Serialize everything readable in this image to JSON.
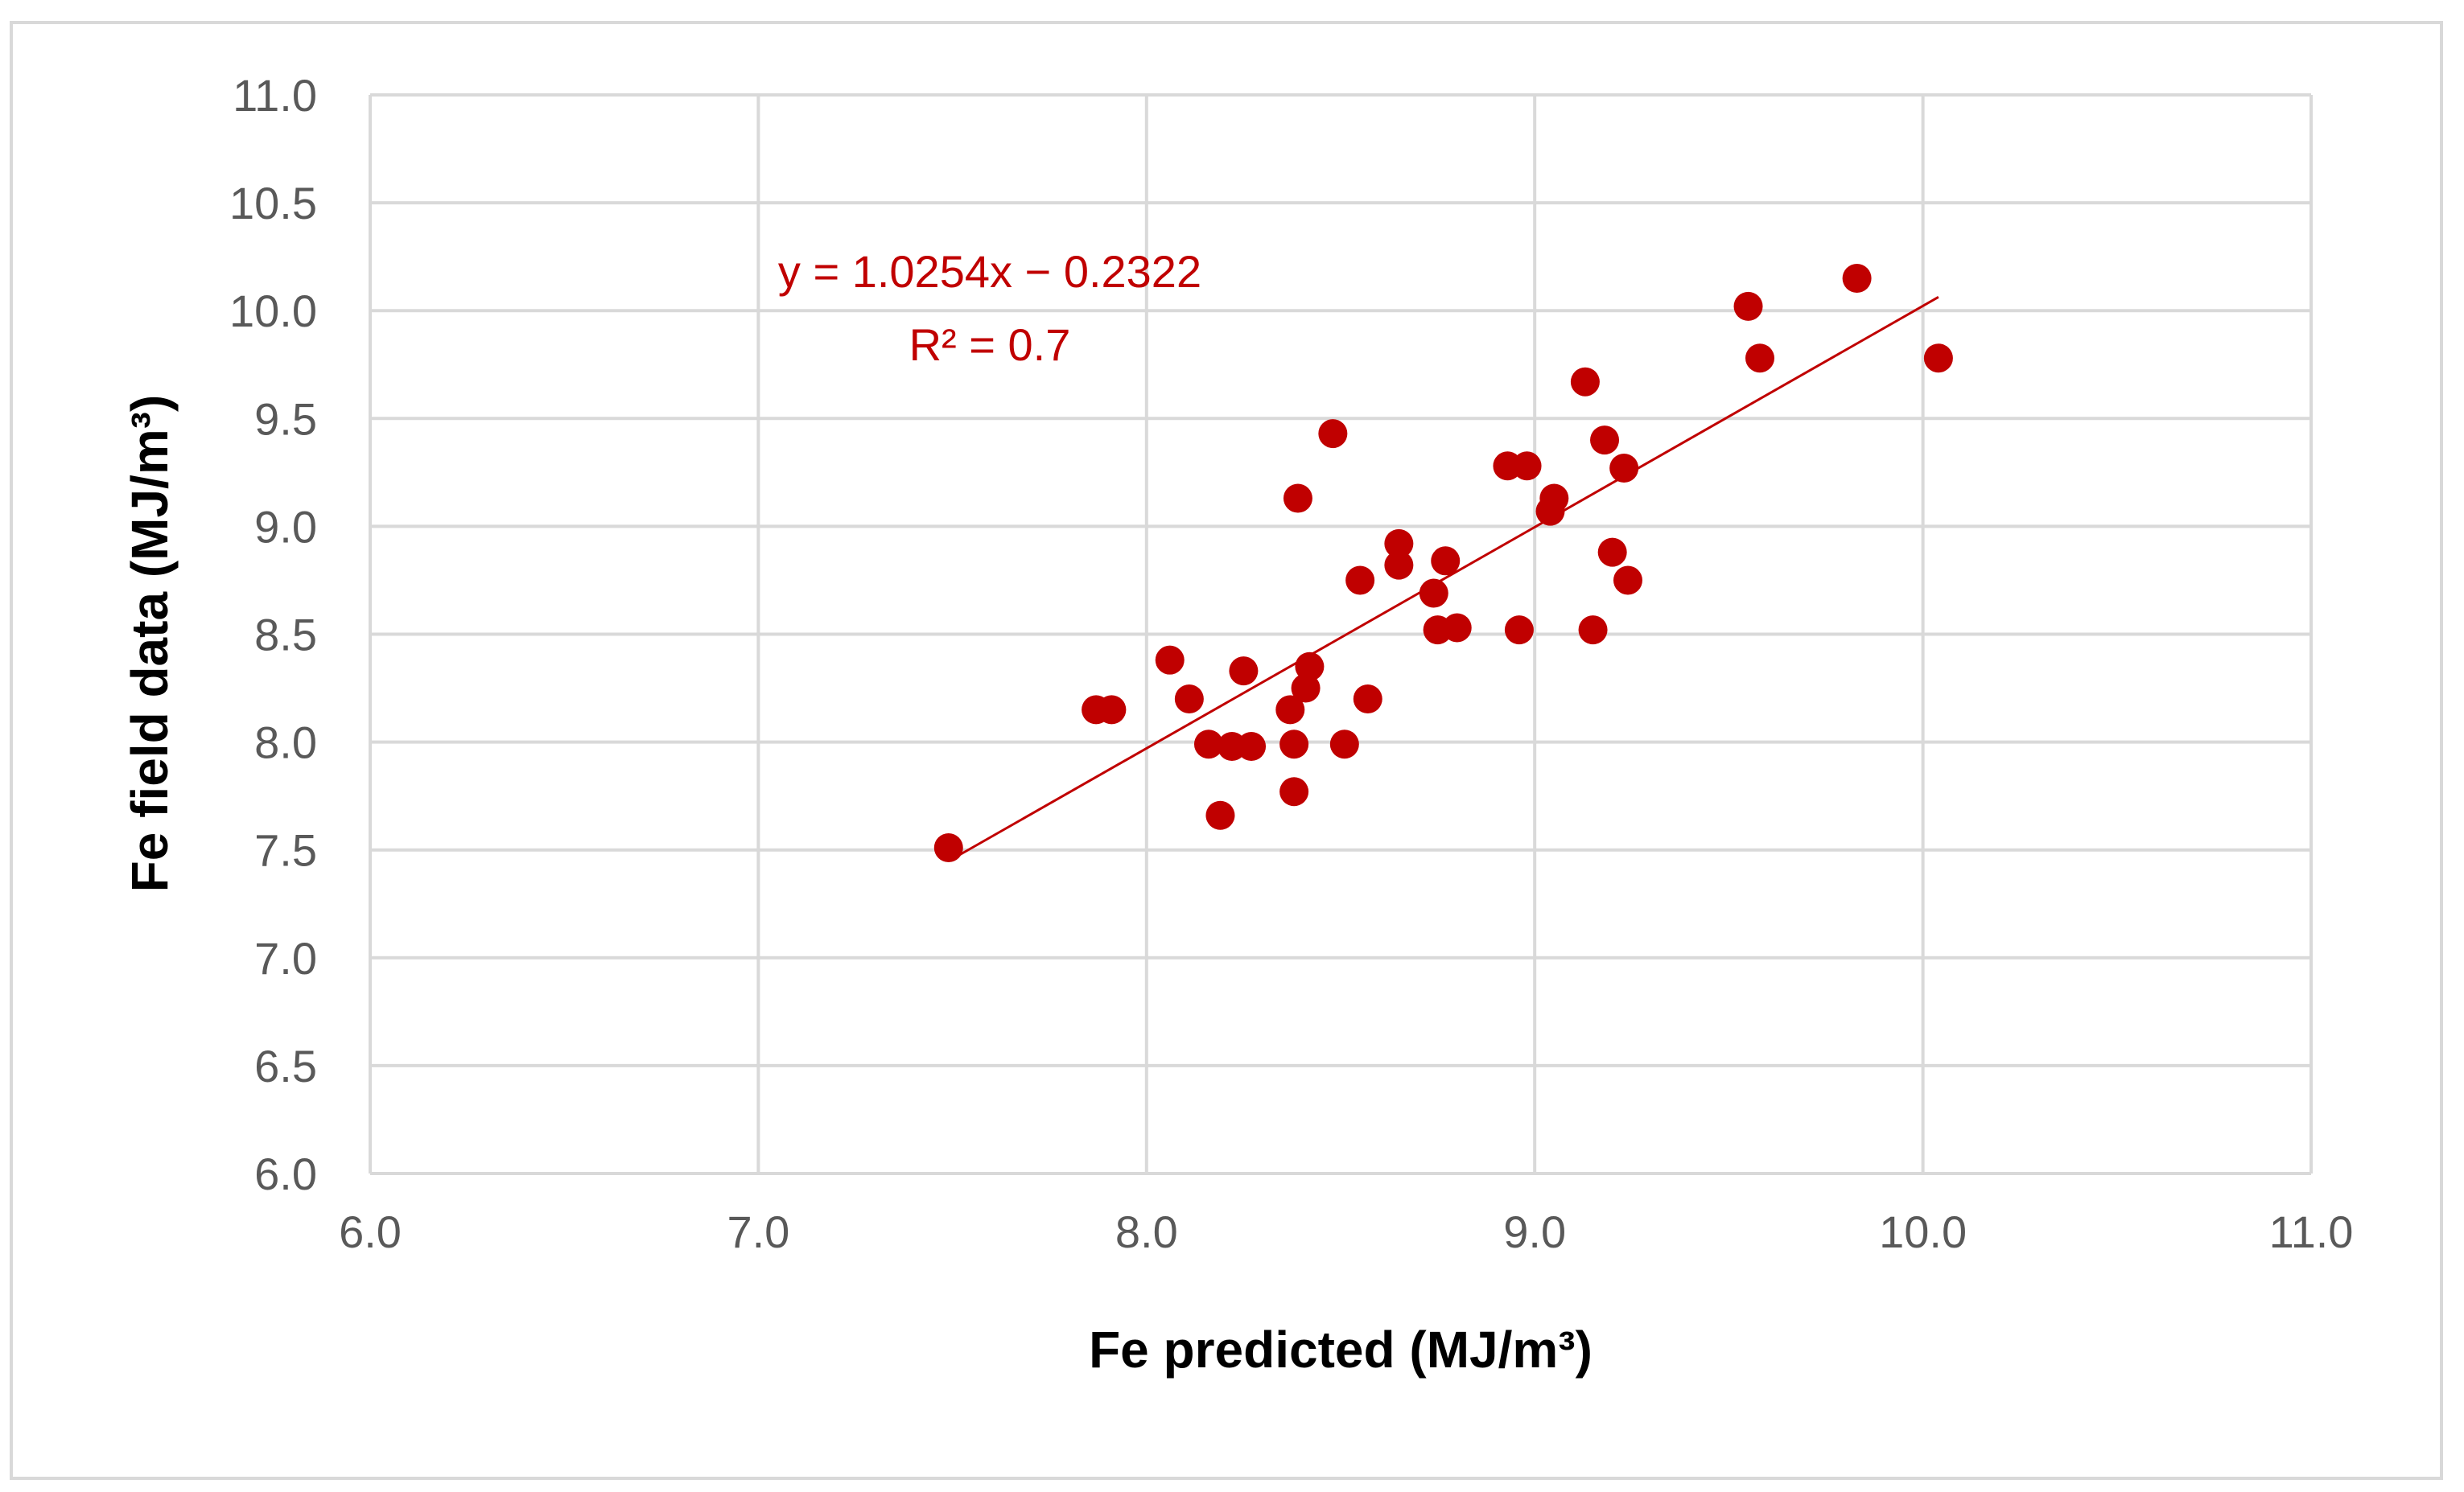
{
  "chart_data": {
    "type": "scatter",
    "title": "",
    "xlabel": "Fe predicted (MJ/m³)",
    "ylabel": "Fe field data (MJ/m³)",
    "xlim": [
      6.0,
      11.0
    ],
    "ylim": [
      6.0,
      11.0
    ],
    "x_ticks": [
      "6.0",
      "7.0",
      "8.0",
      "9.0",
      "10.0",
      "11.0"
    ],
    "y_ticks": [
      "6.0",
      "6.5",
      "7.0",
      "7.5",
      "8.0",
      "8.5",
      "9.0",
      "9.5",
      "10.0",
      "10.5",
      "11.0"
    ],
    "grid": true,
    "legend": "none",
    "marker_color": "#C00000",
    "trendline_color": "#C00000",
    "trendline": {
      "equation": "y = 1.0254x − 0.2322",
      "r_squared": "R² = 0.7",
      "slope": 1.0254,
      "intercept": -0.2322,
      "x_range": [
        7.49,
        10.04
      ]
    },
    "series": [
      {
        "x": [
          7.49,
          7.87,
          7.91,
          8.06,
          8.11,
          8.16,
          8.19,
          8.22,
          8.25,
          8.27,
          8.37,
          8.38,
          8.38,
          8.39,
          8.41,
          8.42,
          8.48,
          8.51,
          8.55,
          8.57,
          8.65,
          8.65,
          8.74,
          8.75,
          8.77,
          8.8,
          8.93,
          8.96,
          8.98,
          9.04,
          9.05,
          9.13,
          9.15,
          9.18,
          9.2,
          9.23,
          9.24,
          9.55,
          9.58,
          9.83,
          10.04
        ],
        "y": [
          7.51,
          8.15,
          8.15,
          8.38,
          8.2,
          7.99,
          7.66,
          7.98,
          8.33,
          7.98,
          8.15,
          7.99,
          7.77,
          9.13,
          8.25,
          8.35,
          9.43,
          7.99,
          8.75,
          8.2,
          8.92,
          8.82,
          8.69,
          8.52,
          8.84,
          8.53,
          9.28,
          8.52,
          9.28,
          9.07,
          9.13,
          9.67,
          8.52,
          9.4,
          8.88,
          9.27,
          8.75,
          10.02,
          9.78,
          10.15,
          9.78
        ]
      }
    ]
  }
}
